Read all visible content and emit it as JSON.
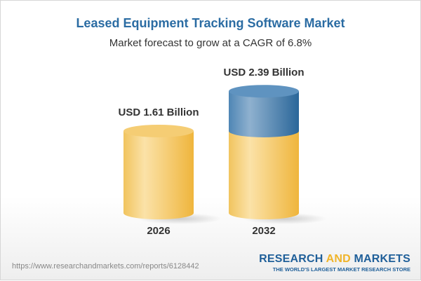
{
  "header": {
    "title": "Leased Equipment Tracking Software Market",
    "subtitle": "Market forecast to grow at a CAGR of 6.8%"
  },
  "chart_data": {
    "type": "bar",
    "style": "3d-cylinder",
    "categories": [
      "2026",
      "2032"
    ],
    "values": [
      1.61,
      2.39
    ],
    "unit": "USD Billion",
    "data_labels": [
      "USD 1.61 Billion",
      "USD 2.39 Billion"
    ],
    "colors": {
      "base": "#f2c25a",
      "growth": "#3f7fb3"
    },
    "grid": false
  },
  "footer": {
    "url": "https://www.researchandmarkets.com/reports/6128442",
    "logo_part1": "RESEARCH ",
    "logo_part2": "AND",
    "logo_part3": " MARKETS",
    "logo_tagline": "THE WORLD'S LARGEST MARKET RESEARCH STORE"
  }
}
